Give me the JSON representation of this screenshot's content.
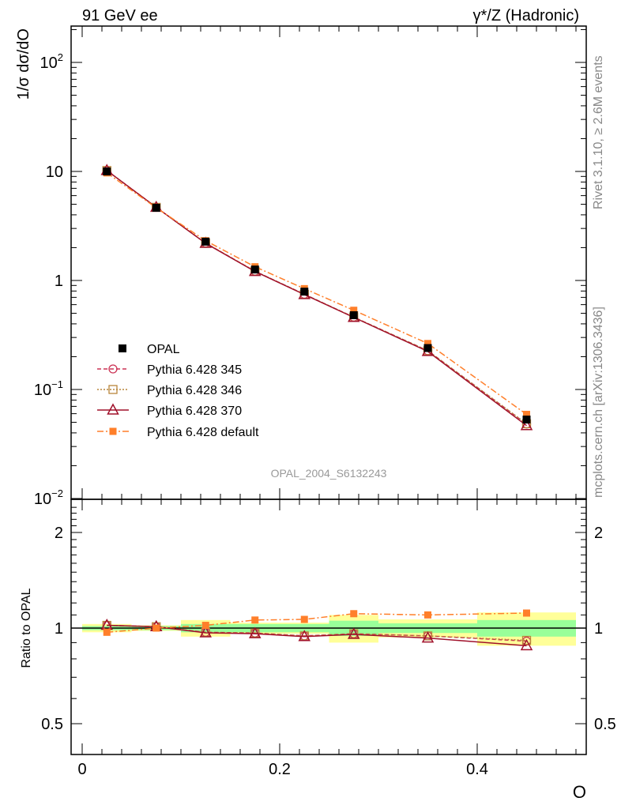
{
  "chart_data": [
    {
      "type": "line",
      "title_left": "91 GeV ee",
      "title_right": "γ*/Z (Hadronic)",
      "ylabel": "1/σ dσ/dO",
      "yscale": "log",
      "ylim": [
        0.01,
        200
      ],
      "yticks": [
        {
          "v": 100,
          "base": "10",
          "exp": "2"
        },
        {
          "v": 10,
          "base": "10",
          "exp": ""
        },
        {
          "v": 1,
          "base": "1",
          "exp": ""
        },
        {
          "v": 0.1,
          "base": "10",
          "exp": "−1"
        },
        {
          "v": 0.01,
          "base": "10",
          "exp": "−2"
        }
      ],
      "xlim": [
        -0.012,
        0.51
      ],
      "x": [
        0.025,
        0.075,
        0.125,
        0.175,
        0.225,
        0.275,
        0.35,
        0.45
      ],
      "bin_edges": [
        0,
        0.05,
        0.1,
        0.15,
        0.2,
        0.25,
        0.3,
        0.4,
        0.5
      ],
      "data": {
        "name": "OPAL",
        "values": [
          10.0,
          4.64,
          2.27,
          1.26,
          0.79,
          0.48,
          0.24,
          0.053
        ]
      },
      "series": [
        {
          "name": "Pythia 6.428 345",
          "color": "#cc3355",
          "marker": "circle",
          "dash": "5,3",
          "ratios": [
            1.02,
            1.01,
            0.97,
            0.965,
            0.945,
            0.96,
            0.945,
            0.91
          ]
        },
        {
          "name": "Pythia 6.428 346",
          "color": "#b8863b",
          "marker": "square-open",
          "dash": "2,2",
          "ratios": [
            1.02,
            1.01,
            0.97,
            0.965,
            0.945,
            0.96,
            0.945,
            0.915
          ]
        },
        {
          "name": "Pythia 6.428 370",
          "color": "#a0102a",
          "marker": "triangle",
          "dash": "",
          "ratios": [
            1.02,
            1.01,
            0.966,
            0.96,
            0.94,
            0.955,
            0.93,
            0.88
          ]
        },
        {
          "name": "Pythia 6.428 default",
          "color": "#ff7f2a",
          "marker": "square-filled",
          "dash": "8,3,2,3",
          "ratios": [
            0.97,
            1.0,
            1.02,
            1.06,
            1.065,
            1.11,
            1.1,
            1.115
          ]
        }
      ],
      "annotation": "OPAL_2004_S6132243",
      "side_label_top": "Rivet 3.1.10, ≥ 2.6M events",
      "side_label_bottom": "mcplots.cern.ch [arXiv:1306.3436]",
      "legend_position": "bottom-left"
    },
    {
      "type": "line",
      "ylabel": "Ratio to OPAL",
      "xlabel": "O",
      "yscale": "log",
      "ylim": [
        0.4,
        2.5
      ],
      "yticks": [
        "0.5",
        "1",
        "2"
      ],
      "xticks": [
        "0",
        "0.2",
        "0.4"
      ],
      "stat_band": [
        0.015,
        0.015,
        0.03,
        0.03,
        0.03,
        0.055,
        0.035,
        0.06
      ],
      "total_band": [
        0.03,
        0.02,
        0.06,
        0.04,
        0.04,
        0.1,
        0.065,
        0.12
      ],
      "band_colors": {
        "stat": "#99ff99",
        "total": "#ffff99"
      }
    }
  ]
}
